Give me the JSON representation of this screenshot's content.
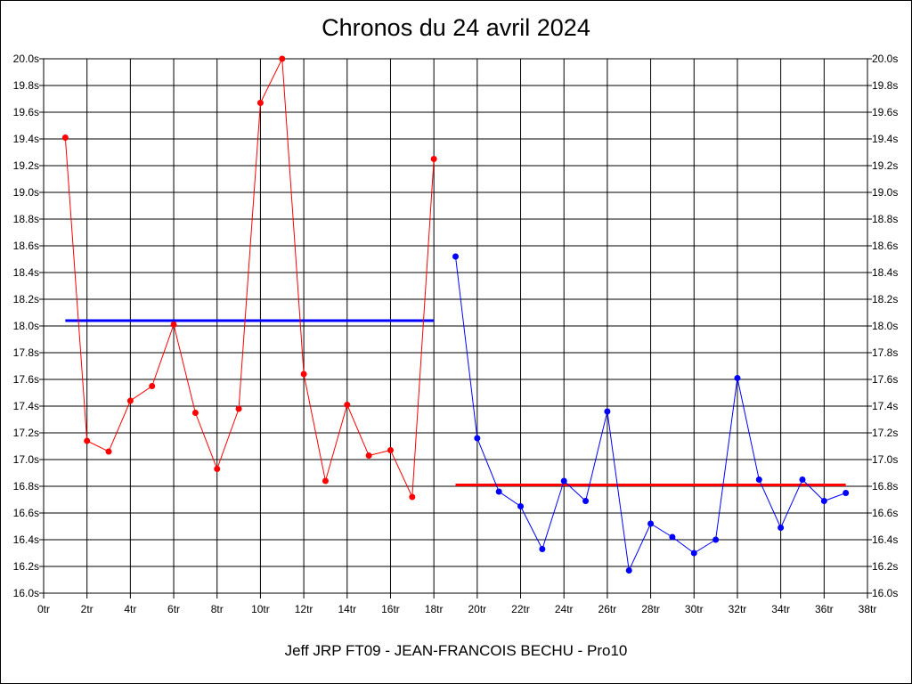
{
  "title": "Chronos du 24 avril 2024",
  "footer": "Jeff JRP FT09 - JEAN-FRANCOIS BECHU - Pro10",
  "chart_data": {
    "type": "line",
    "title": "Chronos du 24 avril 2024",
    "xlim": [
      0,
      38
    ],
    "ylim": [
      16.0,
      20.0
    ],
    "x_ticks": [
      "0tr",
      "2tr",
      "4tr",
      "6tr",
      "8tr",
      "10tr",
      "12tr",
      "14tr",
      "16tr",
      "18tr",
      "20tr",
      "22tr",
      "24tr",
      "26tr",
      "28tr",
      "30tr",
      "32tr",
      "34tr",
      "36tr",
      "38tr"
    ],
    "y_ticks": [
      "16.0s",
      "16.2s",
      "16.4s",
      "16.6s",
      "16.8s",
      "17.0s",
      "17.2s",
      "17.4s",
      "17.6s",
      "17.8s",
      "18.0s",
      "18.2s",
      "18.4s",
      "18.6s",
      "18.8s",
      "19.0s",
      "19.2s",
      "19.4s",
      "19.6s",
      "19.8s",
      "20.0s"
    ],
    "grid": true,
    "series": [
      {
        "color": "#ff0000",
        "x": [
          1,
          2,
          3,
          4,
          5,
          6,
          7,
          8,
          9,
          10,
          11,
          12,
          13,
          14,
          15,
          16,
          17,
          18
        ],
        "y": [
          19.41,
          17.14,
          17.06,
          17.44,
          17.55,
          18.01,
          17.35,
          16.93,
          17.38,
          19.67,
          20.0,
          17.64,
          16.84,
          17.41,
          17.03,
          17.07,
          16.72,
          19.25
        ]
      },
      {
        "color": "#0000ff",
        "x": [
          19,
          20,
          21,
          22,
          23,
          24,
          25,
          26,
          27,
          28,
          29,
          30,
          31,
          32,
          33,
          34,
          35,
          36,
          37
        ],
        "y": [
          18.52,
          17.16,
          16.76,
          16.65,
          16.33,
          16.84,
          16.69,
          17.36,
          16.17,
          16.52,
          16.42,
          16.3,
          16.4,
          17.61,
          16.85,
          16.49,
          16.85,
          16.69,
          16.75
        ]
      }
    ],
    "reference_lines": [
      {
        "color": "#0000ff",
        "x": [
          1,
          18
        ],
        "y": 18.04
      },
      {
        "color": "#ff0000",
        "x": [
          19,
          37
        ],
        "y": 16.81
      }
    ]
  }
}
